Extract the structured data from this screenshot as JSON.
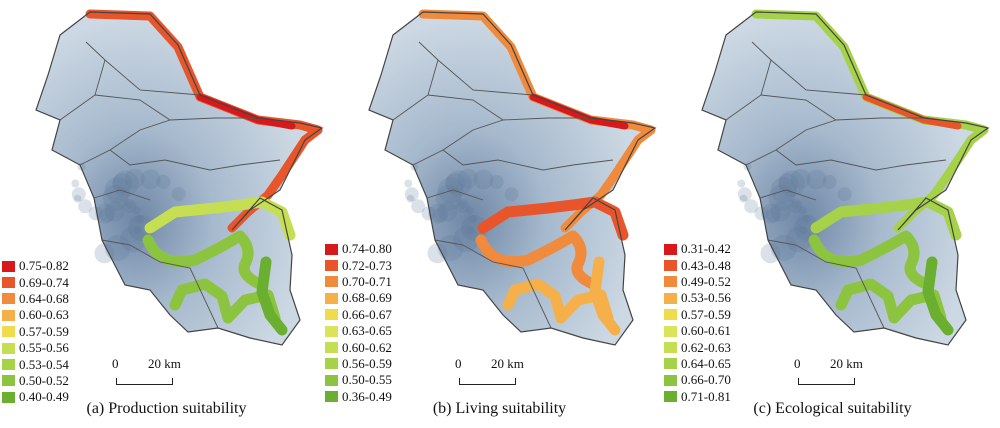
{
  "unit_label": "km",
  "scale": {
    "zero": "0",
    "distance": "20"
  },
  "panels": [
    {
      "caption": "(a) Production suitability",
      "legend": [
        {
          "label": "0.75-0.82",
          "color": "#d7191c"
        },
        {
          "label": "0.69-0.74",
          "color": "#e8552a"
        },
        {
          "label": "0.64-0.68",
          "color": "#f08a3c"
        },
        {
          "label": "0.60-0.63",
          "color": "#f5b04a"
        },
        {
          "label": "0.57-0.59",
          "color": "#eedc4d"
        },
        {
          "label": "0.55-0.56",
          "color": "#c6df52"
        },
        {
          "label": "0.53-0.54",
          "color": "#a6d24a"
        },
        {
          "label": "0.50-0.52",
          "color": "#8cc43f"
        },
        {
          "label": "0.40-0.49",
          "color": "#6aaf2f"
        }
      ]
    },
    {
      "caption": "(b) Living suitability",
      "legend": [
        {
          "label": "0.74-0.80",
          "color": "#d7191c"
        },
        {
          "label": "0.72-0.73",
          "color": "#e8552a"
        },
        {
          "label": "0.70-0.71",
          "color": "#f08a3c"
        },
        {
          "label": "0.68-0.69",
          "color": "#f5b04a"
        },
        {
          "label": "0.66-0.67",
          "color": "#eedc4d"
        },
        {
          "label": "0.63-0.65",
          "color": "#d9e45a"
        },
        {
          "label": "0.60-0.62",
          "color": "#c6df52"
        },
        {
          "label": "0.56-0.59",
          "color": "#a6d24a"
        },
        {
          "label": "0.50-0.55",
          "color": "#8cc43f"
        },
        {
          "label": "0.36-0.49",
          "color": "#6aaf2f"
        }
      ]
    },
    {
      "caption": "(c) Ecological suitability",
      "legend": [
        {
          "label": "0.31-0.42",
          "color": "#d7191c"
        },
        {
          "label": "0.43-0.48",
          "color": "#e8552a"
        },
        {
          "label": "0.49-0.52",
          "color": "#f08a3c"
        },
        {
          "label": "0.53-0.56",
          "color": "#f5b04a"
        },
        {
          "label": "0.57-0.59",
          "color": "#eedc4d"
        },
        {
          "label": "0.60-0.61",
          "color": "#d9e45a"
        },
        {
          "label": "0.62-0.63",
          "color": "#c6df52"
        },
        {
          "label": "0.64-0.65",
          "color": "#a6d24a"
        },
        {
          "label": "0.66-0.70",
          "color": "#8cc43f"
        },
        {
          "label": "0.71-0.81",
          "color": "#6aaf2f"
        }
      ]
    }
  ]
}
